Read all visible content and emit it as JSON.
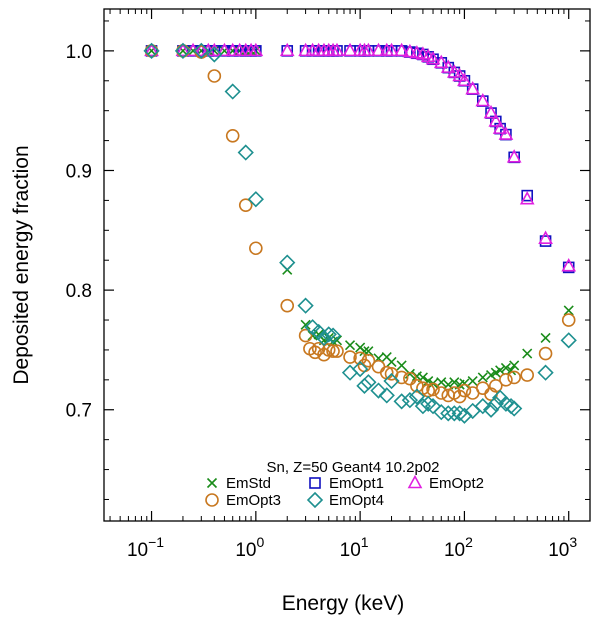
{
  "chart_data": {
    "type": "scatter",
    "title": "",
    "xlabel": "Energy (keV)",
    "ylabel": "Deposited energy fraction",
    "x_scale": "log",
    "xlim": [
      0.035,
      1600
    ],
    "ylim": [
      0.607,
      1.035
    ],
    "x_ticks": [
      {
        "value": 0.1,
        "base": "10",
        "exp": "−1"
      },
      {
        "value": 1,
        "base": "10",
        "exp": "0"
      },
      {
        "value": 10,
        "base": "10",
        "exp": "1"
      },
      {
        "value": 100,
        "base": "10",
        "exp": "2"
      },
      {
        "value": 1000,
        "base": "10",
        "exp": "3"
      }
    ],
    "y_ticks": [
      {
        "value": 0.7,
        "label": "0.7"
      },
      {
        "value": 0.8,
        "label": "0.8"
      },
      {
        "value": 0.9,
        "label": "0.9"
      },
      {
        "value": 1.0,
        "label": "1.0"
      }
    ],
    "legend_title": "Sn, Z=50 Geant4 10.2p02",
    "legend_position": "bottom-center",
    "series": [
      {
        "name": "EmStd",
        "marker": "x",
        "color": "#1a8c1a",
        "points": [
          [
            0.1,
            1.0
          ],
          [
            0.2,
            1.0
          ],
          [
            0.25,
            1.0
          ],
          [
            0.3,
            1.0
          ],
          [
            0.35,
            1.0
          ],
          [
            0.4,
            1.0
          ],
          [
            0.5,
            1.0
          ],
          [
            0.6,
            1.0
          ],
          [
            0.7,
            1.0
          ],
          [
            0.8,
            1.0
          ],
          [
            0.9,
            1.0
          ],
          [
            1.0,
            1.0
          ],
          [
            2,
            0.817
          ],
          [
            3,
            0.771
          ],
          [
            3.5,
            0.762
          ],
          [
            4,
            0.763
          ],
          [
            4.5,
            0.758
          ],
          [
            5,
            0.76
          ],
          [
            5.5,
            0.757
          ],
          [
            6,
            0.758
          ],
          [
            8,
            0.754
          ],
          [
            10,
            0.752
          ],
          [
            11,
            0.749
          ],
          [
            12,
            0.749
          ],
          [
            15,
            0.743
          ],
          [
            18,
            0.744
          ],
          [
            20,
            0.74
          ],
          [
            25,
            0.737
          ],
          [
            30,
            0.73
          ],
          [
            35,
            0.728
          ],
          [
            40,
            0.727
          ],
          [
            45,
            0.724
          ],
          [
            50,
            0.722
          ],
          [
            60,
            0.723
          ],
          [
            70,
            0.721
          ],
          [
            80,
            0.723
          ],
          [
            90,
            0.721
          ],
          [
            100,
            0.722
          ],
          [
            120,
            0.724
          ],
          [
            150,
            0.727
          ],
          [
            180,
            0.729
          ],
          [
            200,
            0.731
          ],
          [
            220,
            0.733
          ],
          [
            250,
            0.735
          ],
          [
            280,
            0.733
          ],
          [
            300,
            0.737
          ],
          [
            400,
            0.747
          ],
          [
            600,
            0.76
          ],
          [
            1000,
            0.783
          ]
        ]
      },
      {
        "name": "EmOpt1",
        "marker": "square",
        "color": "#1010c0",
        "points": [
          [
            0.1,
            1.0
          ],
          [
            0.2,
            1.0
          ],
          [
            0.25,
            1.0
          ],
          [
            0.3,
            1.0
          ],
          [
            0.35,
            1.0
          ],
          [
            0.4,
            1.0
          ],
          [
            0.5,
            1.0
          ],
          [
            0.6,
            1.0
          ],
          [
            0.7,
            1.0
          ],
          [
            0.8,
            1.0
          ],
          [
            0.9,
            1.0
          ],
          [
            1.0,
            1.0
          ],
          [
            2,
            1.0
          ],
          [
            3,
            1.0
          ],
          [
            3.5,
            1.0
          ],
          [
            4,
            1.0
          ],
          [
            4.5,
            1.0
          ],
          [
            5,
            1.0
          ],
          [
            5.5,
            1.0
          ],
          [
            6,
            1.0
          ],
          [
            8,
            1.0
          ],
          [
            10,
            1.0
          ],
          [
            11,
            1.0
          ],
          [
            12,
            1.0
          ],
          [
            15,
            1.0
          ],
          [
            18,
            1.0
          ],
          [
            20,
            1.0
          ],
          [
            25,
            1.0
          ],
          [
            30,
            0.999
          ],
          [
            35,
            0.998
          ],
          [
            40,
            0.997
          ],
          [
            45,
            0.995
          ],
          [
            50,
            0.993
          ],
          [
            60,
            0.99
          ],
          [
            70,
            0.986
          ],
          [
            80,
            0.982
          ],
          [
            90,
            0.979
          ],
          [
            100,
            0.975
          ],
          [
            120,
            0.968
          ],
          [
            150,
            0.958
          ],
          [
            180,
            0.948
          ],
          [
            200,
            0.941
          ],
          [
            220,
            0.935
          ],
          [
            250,
            0.93
          ],
          [
            300,
            0.911
          ],
          [
            400,
            0.879
          ],
          [
            600,
            0.841
          ],
          [
            1000,
            0.819
          ]
        ]
      },
      {
        "name": "EmOpt2",
        "marker": "triangle",
        "color": "#e020e0",
        "points": [
          [
            0.1,
            1.0
          ],
          [
            0.2,
            1.0
          ],
          [
            0.25,
            1.0
          ],
          [
            0.3,
            1.0
          ],
          [
            0.35,
            1.0
          ],
          [
            0.4,
            1.0
          ],
          [
            0.5,
            1.0
          ],
          [
            0.6,
            1.0
          ],
          [
            0.7,
            1.0
          ],
          [
            0.8,
            1.0
          ],
          [
            0.9,
            1.0
          ],
          [
            1.0,
            1.0
          ],
          [
            2,
            1.0
          ],
          [
            3,
            1.0
          ],
          [
            3.5,
            1.0
          ],
          [
            4,
            1.0
          ],
          [
            4.5,
            1.0
          ],
          [
            5,
            1.0
          ],
          [
            5.5,
            1.0
          ],
          [
            6,
            1.0
          ],
          [
            8,
            1.0
          ],
          [
            10,
            1.0
          ],
          [
            11,
            1.0
          ],
          [
            12,
            1.0
          ],
          [
            15,
            1.0
          ],
          [
            18,
            1.0
          ],
          [
            20,
            1.0
          ],
          [
            25,
            1.0
          ],
          [
            30,
            0.999
          ],
          [
            35,
            0.998
          ],
          [
            40,
            0.997
          ],
          [
            45,
            0.995
          ],
          [
            50,
            0.993
          ],
          [
            60,
            0.99
          ],
          [
            70,
            0.986
          ],
          [
            80,
            0.982
          ],
          [
            90,
            0.979
          ],
          [
            100,
            0.975
          ],
          [
            120,
            0.968
          ],
          [
            150,
            0.958
          ],
          [
            180,
            0.948
          ],
          [
            200,
            0.941
          ],
          [
            220,
            0.935
          ],
          [
            250,
            0.93
          ],
          [
            300,
            0.911
          ],
          [
            400,
            0.876
          ],
          [
            600,
            0.843
          ],
          [
            1000,
            0.82
          ]
        ]
      },
      {
        "name": "EmOpt3",
        "marker": "circle",
        "color": "#c87820",
        "points": [
          [
            0.1,
            1.0
          ],
          [
            0.2,
            1.0
          ],
          [
            0.3,
            0.999
          ],
          [
            0.4,
            0.979
          ],
          [
            0.6,
            0.929
          ],
          [
            0.8,
            0.871
          ],
          [
            1.0,
            0.835
          ],
          [
            2,
            0.787
          ],
          [
            3,
            0.762
          ],
          [
            3.3,
            0.751
          ],
          [
            3.7,
            0.748
          ],
          [
            4,
            0.751
          ],
          [
            4.5,
            0.746
          ],
          [
            5,
            0.75
          ],
          [
            5.5,
            0.749
          ],
          [
            6,
            0.749
          ],
          [
            8,
            0.744
          ],
          [
            10,
            0.743
          ],
          [
            11,
            0.737
          ],
          [
            12,
            0.741
          ],
          [
            15,
            0.736
          ],
          [
            18,
            0.731
          ],
          [
            20,
            0.73
          ],
          [
            25,
            0.727
          ],
          [
            30,
            0.726
          ],
          [
            35,
            0.72
          ],
          [
            40,
            0.718
          ],
          [
            45,
            0.716
          ],
          [
            50,
            0.717
          ],
          [
            60,
            0.714
          ],
          [
            70,
            0.712
          ],
          [
            80,
            0.714
          ],
          [
            90,
            0.711
          ],
          [
            100,
            0.716
          ],
          [
            120,
            0.714
          ],
          [
            150,
            0.718
          ],
          [
            180,
            0.713
          ],
          [
            200,
            0.72
          ],
          [
            250,
            0.725
          ],
          [
            300,
            0.727
          ],
          [
            400,
            0.729
          ],
          [
            600,
            0.747
          ],
          [
            1000,
            0.775
          ]
        ]
      },
      {
        "name": "EmOpt4",
        "marker": "diamond",
        "color": "#1e9090",
        "points": [
          [
            0.1,
            1.0
          ],
          [
            0.2,
            1.0
          ],
          [
            0.3,
            1.0
          ],
          [
            0.4,
            0.997
          ],
          [
            0.6,
            0.966
          ],
          [
            0.8,
            0.915
          ],
          [
            1.0,
            0.876
          ],
          [
            2,
            0.823
          ],
          [
            3,
            0.787
          ],
          [
            3.5,
            0.769
          ],
          [
            4,
            0.765
          ],
          [
            4.5,
            0.76
          ],
          [
            5,
            0.763
          ],
          [
            5.5,
            0.762
          ],
          [
            8,
            0.731
          ],
          [
            10,
            0.734
          ],
          [
            11,
            0.72
          ],
          [
            12,
            0.723
          ],
          [
            15,
            0.716
          ],
          [
            18,
            0.712
          ],
          [
            20,
            0.724
          ],
          [
            25,
            0.707
          ],
          [
            30,
            0.708
          ],
          [
            35,
            0.711
          ],
          [
            40,
            0.703
          ],
          [
            45,
            0.705
          ],
          [
            50,
            0.703
          ],
          [
            60,
            0.698
          ],
          [
            70,
            0.697
          ],
          [
            80,
            0.697
          ],
          [
            90,
            0.697
          ],
          [
            100,
            0.695
          ],
          [
            120,
            0.699
          ],
          [
            150,
            0.703
          ],
          [
            180,
            0.7
          ],
          [
            200,
            0.705
          ],
          [
            220,
            0.71
          ],
          [
            250,
            0.705
          ],
          [
            280,
            0.703
          ],
          [
            300,
            0.701
          ],
          [
            600,
            0.731
          ],
          [
            1000,
            0.758
          ]
        ]
      }
    ]
  }
}
